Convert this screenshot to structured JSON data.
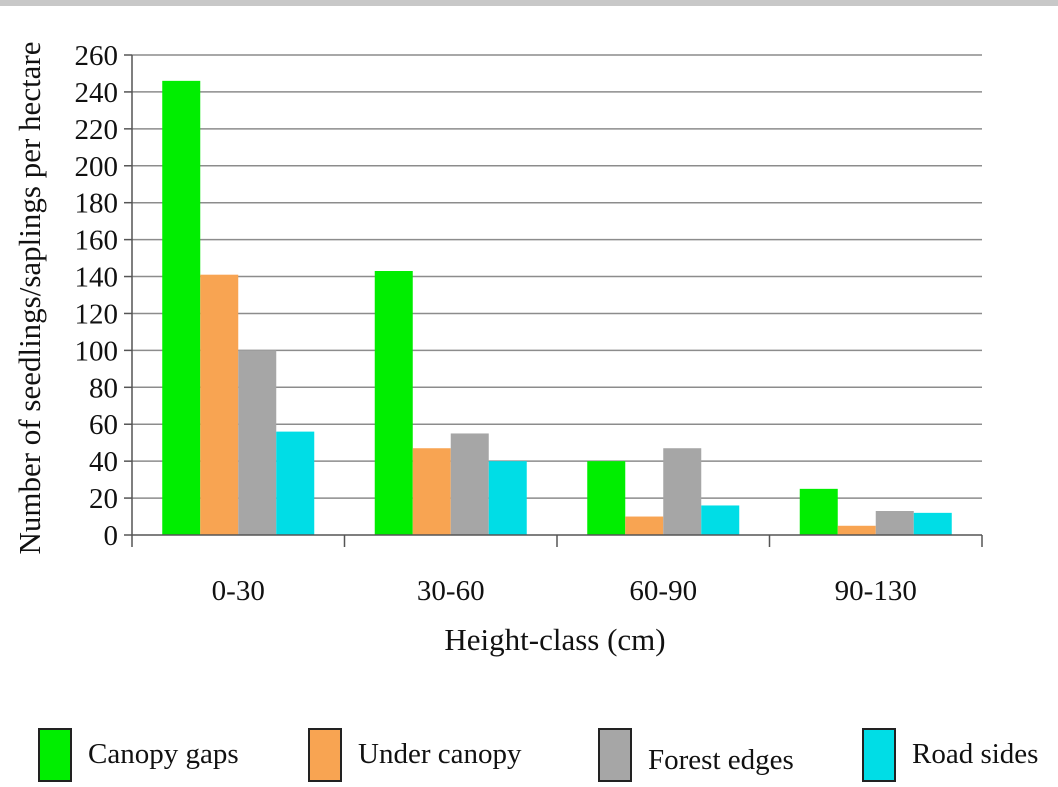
{
  "chart_data": {
    "type": "bar",
    "xlabel": "Height-class (cm)",
    "ylabel": "Number of seedlings/saplings per hectare",
    "categories": [
      "0-30",
      "30-60",
      "60-90",
      "90-130"
    ],
    "ylim": [
      0,
      260
    ],
    "yticks": [
      0,
      20,
      40,
      60,
      80,
      100,
      120,
      140,
      160,
      180,
      200,
      220,
      240,
      260
    ],
    "grid": true,
    "legend_position": "bottom",
    "series": [
      {
        "name": "Canopy gaps",
        "color": "#00ee00",
        "values": [
          246,
          143,
          40,
          25
        ]
      },
      {
        "name": "Under canopy",
        "color": "#f8a452",
        "values": [
          141,
          47,
          10,
          5
        ]
      },
      {
        "name": "Forest edges",
        "color": "#a6a6a6",
        "values": [
          100,
          55,
          47,
          13
        ]
      },
      {
        "name": "Road sides",
        "color": "#00dde6",
        "values": [
          56,
          40,
          16,
          12
        ]
      }
    ]
  }
}
